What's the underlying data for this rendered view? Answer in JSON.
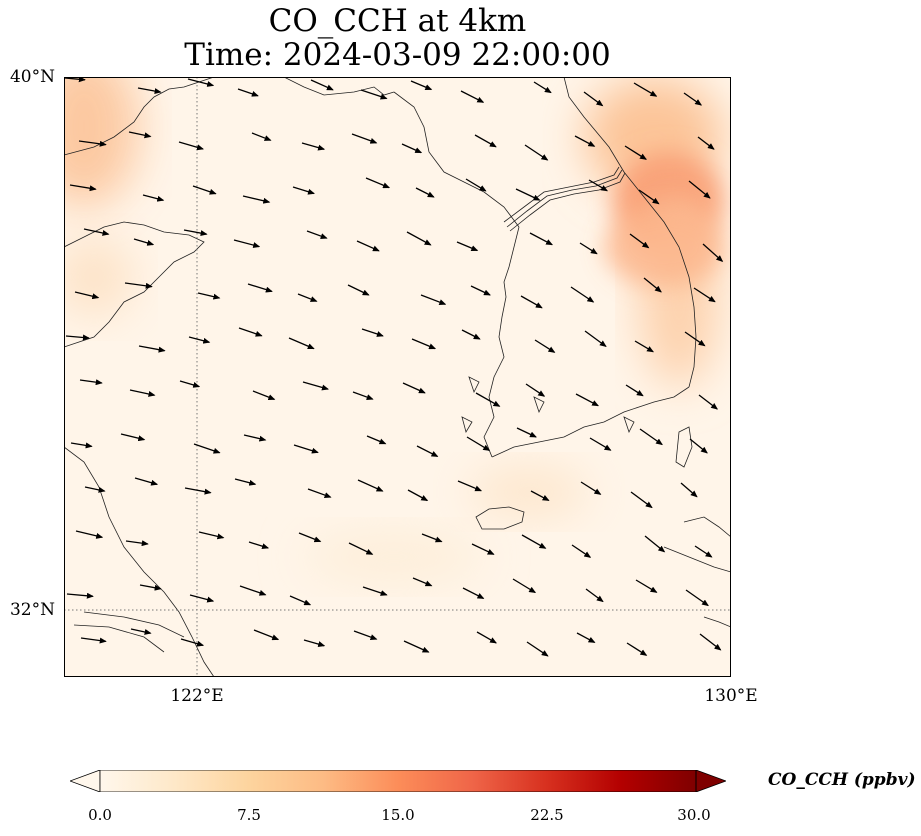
{
  "title": {
    "line1": "CO_CCH at 4km",
    "line2": "Time: 2024-03-09 22:00:00"
  },
  "axes": {
    "y_ticks": [
      "40°N",
      "32°N"
    ],
    "x_ticks": [
      "122°E",
      "130°E"
    ]
  },
  "colorbar": {
    "label": "CO_CCH (ppbv)",
    "ticks": [
      "0.0",
      "7.5",
      "15.0",
      "22.5",
      "30.0"
    ],
    "colormap": "OrRd",
    "extend": "both",
    "colors": [
      "#fff7ec",
      "#fee8c8",
      "#fdd49e",
      "#fdbb84",
      "#fc8d59",
      "#ef6548",
      "#d7301f",
      "#b30000",
      "#7f0000"
    ]
  },
  "map": {
    "projection": "lat-lon",
    "lon_range": [
      120,
      130
    ],
    "lat_range": [
      31,
      40
    ],
    "gridlines": "dotted at 122°E and 32°N",
    "overlay": "wind vectors (east-south-east flow)",
    "concentration_note": "low values (~1-3 ppbv) over most of domain; elevated (~8-11 ppbv) near NW corner and along NE coast near 38.5°N 129°E"
  }
}
